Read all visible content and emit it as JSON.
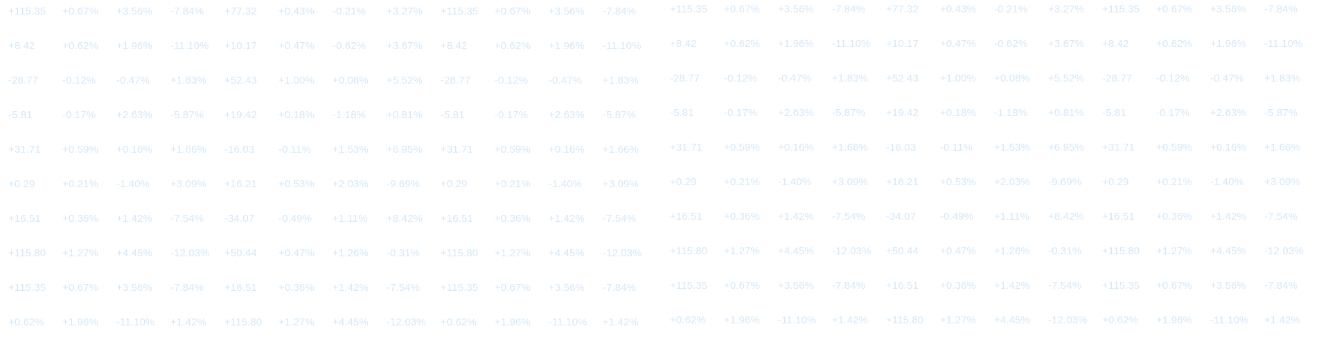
{
  "ticker_rows": [
    [
      "+115.35",
      "+0.67%",
      "+3.56%",
      "-7.84%",
      "+77.32",
      "+0.43%",
      "-0.21%",
      "+3.27%",
      "+115.35",
      "+0.67%",
      "+3.56%",
      "-7.84%"
    ],
    [
      "+8.42",
      "+0.62%",
      "+1.96%",
      "-11.10%",
      "+10.17",
      "+0.47%",
      "-0.62%",
      "+3.67%",
      "+8.42",
      "+0.62%",
      "+1.96%",
      "-11.10%"
    ],
    [
      "-28.77",
      "-0.12%",
      "-0.47%",
      "+1.83%",
      "+52.43",
      "+1.00%",
      "+0.08%",
      "+5.52%",
      "-28.77",
      "-0.12%",
      "-0.47%",
      "+1.83%"
    ],
    [
      "-5.81",
      "-0.17%",
      "+2.63%",
      "-5.87%",
      "+19.42",
      "+0.18%",
      "-1.18%",
      "+0.81%",
      "-5.81",
      "-0.17%",
      "+2.63%",
      "-5.87%"
    ],
    [
      "+31.71",
      "+0.59%",
      "+0.16%",
      "+1.66%",
      "-16.03",
      "-0.11%",
      "+1.53%",
      "+6.95%",
      "+31.71",
      "+0.59%",
      "+0.16%",
      "+1.66%"
    ],
    [
      "+0.29",
      "+0.21%",
      "-1.40%",
      "+3.09%",
      "+16.21",
      "+0.53%",
      "+2.03%",
      "-9.69%",
      "+0.29",
      "+0.21%",
      "-1.40%",
      "+3.09%"
    ],
    [
      "+16.51",
      "+0.36%",
      "+1.42%",
      "-7.54%",
      "-34.07",
      "-0.49%",
      "+1.11%",
      "+8.42%",
      "+16.51",
      "+0.36%",
      "+1.42%",
      "-7.54%"
    ],
    [
      "+115.80",
      "+1.27%",
      "+4.45%",
      "-12.03%",
      "+50.44",
      "+0.47%",
      "+1.26%",
      "-0.31%",
      "+115.80",
      "+1.27%",
      "+4.45%",
      "-12.03%"
    ],
    [
      "+115.35",
      "+0.67%",
      "+3.56%",
      "-7.84%",
      "+16.51",
      "+0.36%",
      "+1.42%",
      "-7.54%",
      "+115.35",
      "+0.67%",
      "+3.56%",
      "-7.84%"
    ],
    [
      "+0.62%",
      "+1.96%",
      "-11.10%",
      "+1.42%",
      "+115.80",
      "+1.27%",
      "+4.45%",
      "-12.03%",
      "+0.62%",
      "+1.96%",
      "-11.10%",
      "+1.42%"
    ]
  ],
  "colors": {
    "ticker_text": "#d4e8f8",
    "background": "#ffffff"
  }
}
